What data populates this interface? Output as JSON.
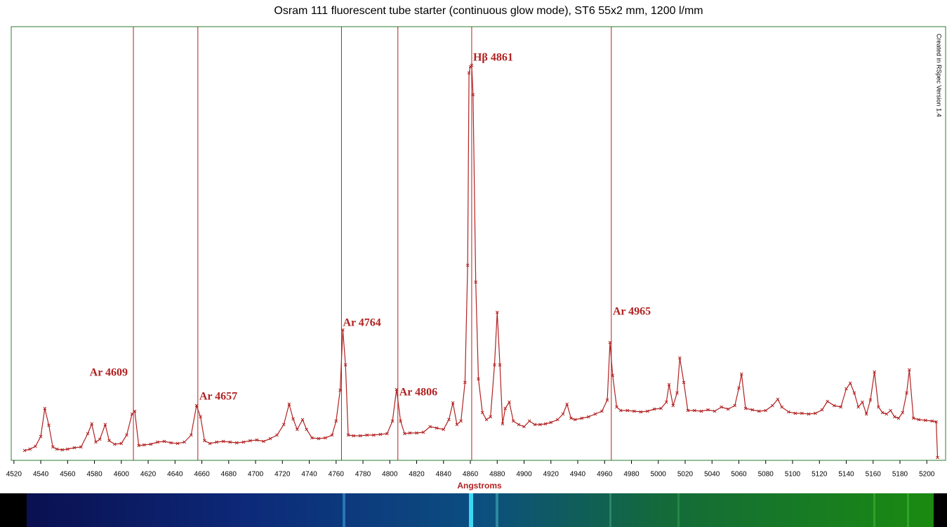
{
  "chart_data": {
    "type": "line",
    "title": "Osram 111 fluorescent tube starter (continuous glow mode), ST6 55x2 mm, 1200 l/mm",
    "x_label": "Angstroms",
    "side_note": "Created in RSpec Version 1.4",
    "color": "#b22222",
    "xlim": [
      4518,
      5214
    ],
    "ylim": [
      0,
      618
    ],
    "xticks": [
      4520,
      4540,
      4560,
      4580,
      4600,
      4620,
      4640,
      4660,
      4680,
      4700,
      4720,
      4740,
      4760,
      4780,
      4800,
      4820,
      4840,
      4860,
      4880,
      4900,
      4920,
      4940,
      4960,
      4980,
      5000,
      5020,
      5040,
      5060,
      5080,
      5100,
      5120,
      5140,
      5160,
      5180,
      5200
    ],
    "x": [
      4528,
      4532,
      4536,
      4540,
      4543,
      4546,
      4549,
      4552,
      4556,
      4560,
      4565,
      4570,
      4575,
      4578,
      4581,
      4584,
      4588,
      4591,
      4595,
      4600,
      4604,
      4608,
      4610,
      4613,
      4617,
      4622,
      4627,
      4632,
      4637,
      4642,
      4647,
      4652,
      4656,
      4659,
      4662,
      4666,
      4671,
      4676,
      4681,
      4686,
      4691,
      4696,
      4701,
      4706,
      4711,
      4716,
      4721,
      4725,
      4728,
      4731,
      4735,
      4738,
      4742,
      4747,
      4752,
      4757,
      4760,
      4763,
      4765,
      4767,
      4769,
      4773,
      4778,
      4783,
      4788,
      4793,
      4798,
      4802,
      4805,
      4808,
      4811,
      4815,
      4820,
      4825,
      4830,
      4835,
      4840,
      4844,
      4847,
      4850,
      4853,
      4856,
      4858,
      4859,
      4860,
      4861,
      4862,
      4864,
      4866,
      4869,
      4872,
      4875,
      4878,
      4880,
      4882,
      4884,
      4886,
      4889,
      4892,
      4896,
      4900,
      4904,
      4908,
      4912,
      4916,
      4920,
      4925,
      4929,
      4932,
      4935,
      4938,
      4943,
      4948,
      4953,
      4958,
      4962,
      4964,
      4966,
      4969,
      4972,
      4977,
      4982,
      4987,
      4992,
      4997,
      5002,
      5006,
      5008,
      5011,
      5014,
      5016,
      5019,
      5022,
      5027,
      5032,
      5037,
      5042,
      5047,
      5052,
      5057,
      5060,
      5062,
      5065,
      5070,
      5075,
      5080,
      5085,
      5089,
      5092,
      5097,
      5102,
      5107,
      5112,
      5117,
      5122,
      5126,
      5131,
      5136,
      5140,
      5143,
      5146,
      5149,
      5152,
      5155,
      5158,
      5161,
      5164,
      5167,
      5170,
      5173,
      5176,
      5179,
      5182,
      5185,
      5187,
      5190,
      5194,
      5199,
      5204,
      5207,
      5208
    ],
    "values": [
      14,
      16,
      20,
      34,
      74,
      50,
      19,
      16,
      15,
      16,
      18,
      19,
      38,
      52,
      26,
      30,
      51,
      28,
      23,
      24,
      36,
      66,
      70,
      21,
      22,
      23,
      26,
      27,
      25,
      24,
      26,
      36,
      78,
      62,
      28,
      24,
      26,
      27,
      26,
      25,
      26,
      28,
      29,
      27,
      31,
      36,
      51,
      80,
      59,
      44,
      58,
      44,
      32,
      31,
      32,
      36,
      56,
      100,
      186,
      136,
      36,
      35,
      35,
      36,
      36,
      37,
      38,
      56,
      101,
      56,
      38,
      39,
      39,
      40,
      48,
      46,
      44,
      58,
      82,
      51,
      56,
      111,
      278,
      552,
      561,
      563,
      521,
      254,
      116,
      68,
      58,
      62,
      136,
      211,
      136,
      52,
      74,
      83,
      56,
      51,
      48,
      56,
      51,
      51,
      52,
      54,
      58,
      66,
      80,
      60,
      58,
      60,
      62,
      66,
      70,
      86,
      168,
      121,
      76,
      71,
      71,
      70,
      69,
      70,
      73,
      74,
      83,
      108,
      78,
      96,
      146,
      111,
      71,
      71,
      70,
      72,
      70,
      76,
      73,
      78,
      103,
      123,
      74,
      72,
      70,
      71,
      78,
      87,
      76,
      69,
      67,
      67,
      66,
      67,
      72,
      84,
      78,
      76,
      102,
      110,
      96,
      76,
      83,
      66,
      86,
      126,
      76,
      68,
      66,
      71,
      62,
      60,
      68,
      96,
      129,
      60,
      58,
      57,
      56,
      55,
      4
    ],
    "annotations": [
      {
        "label": "Ar 4609",
        "x": 4609
      },
      {
        "label": "Ar 4657",
        "x": 4657
      },
      {
        "label": "Ar 4764",
        "x": 4764
      },
      {
        "label": "Ar 4806",
        "x": 4806
      },
      {
        "label": "Hβ 4861",
        "x": 4861
      },
      {
        "label": "Ar 4965",
        "x": 4965
      }
    ]
  }
}
